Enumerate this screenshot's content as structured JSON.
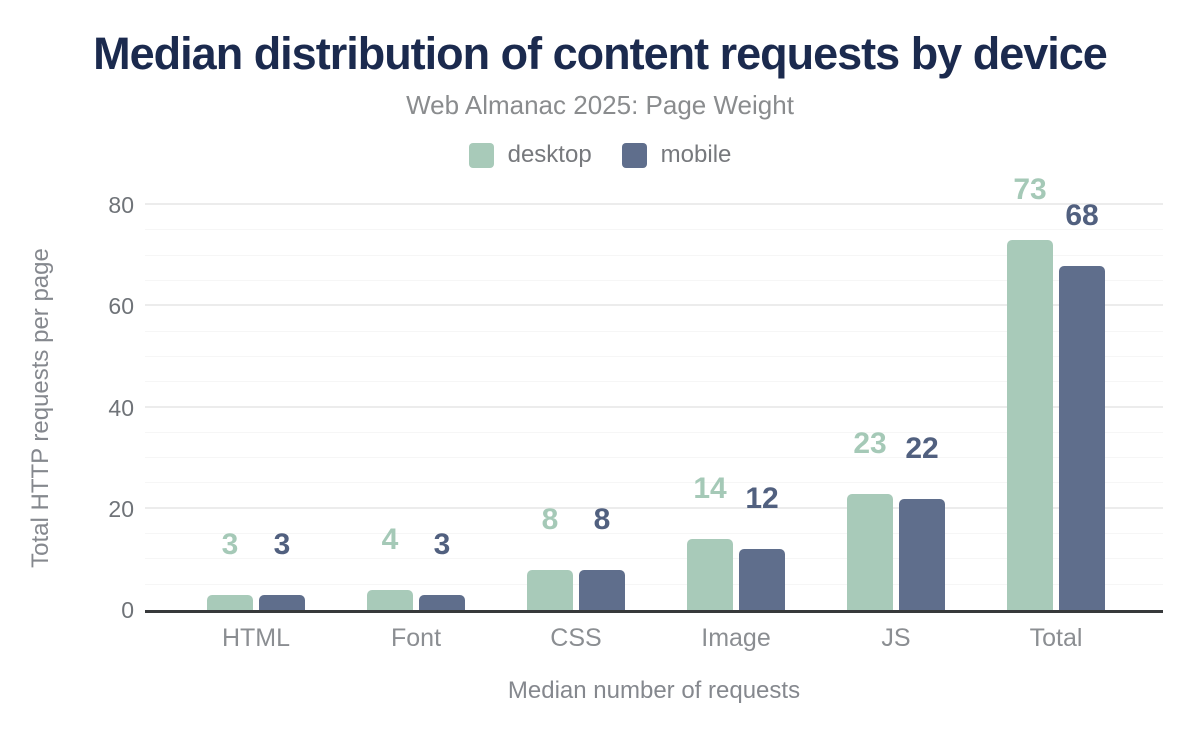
{
  "chart_data": {
    "type": "bar",
    "title": "Median distribution of content requests by device",
    "subtitle": "Web Almanac 2025: Page Weight",
    "xlabel": "Median number of requests",
    "ylabel": "Total HTTP requests per page",
    "categories": [
      "HTML",
      "Font",
      "CSS",
      "Image",
      "JS",
      "Total"
    ],
    "series": [
      {
        "name": "desktop",
        "color": "#a8cab9",
        "label_color": "#a5c9b7",
        "values": [
          3,
          4,
          8,
          14,
          23,
          73
        ]
      },
      {
        "name": "mobile",
        "color": "#5f6e8c",
        "label_color": "#51607f",
        "values": [
          3,
          3,
          8,
          12,
          22,
          68
        ]
      }
    ],
    "ylim": [
      0,
      80
    ],
    "yticks": [
      0,
      20,
      40,
      60,
      80
    ],
    "minor_tick_step": 5,
    "grid": true,
    "legend_position": "top",
    "data_labels": true,
    "colors": {
      "title": "#1b2a4e",
      "subtitle": "#8a8c8e",
      "axis_text": "#85888e",
      "tick_text": "#6f7378",
      "axis_line": "#37393b",
      "grid_major": "#ececec",
      "grid_minor": "#f6f6f6",
      "background": "#ffffff"
    }
  }
}
